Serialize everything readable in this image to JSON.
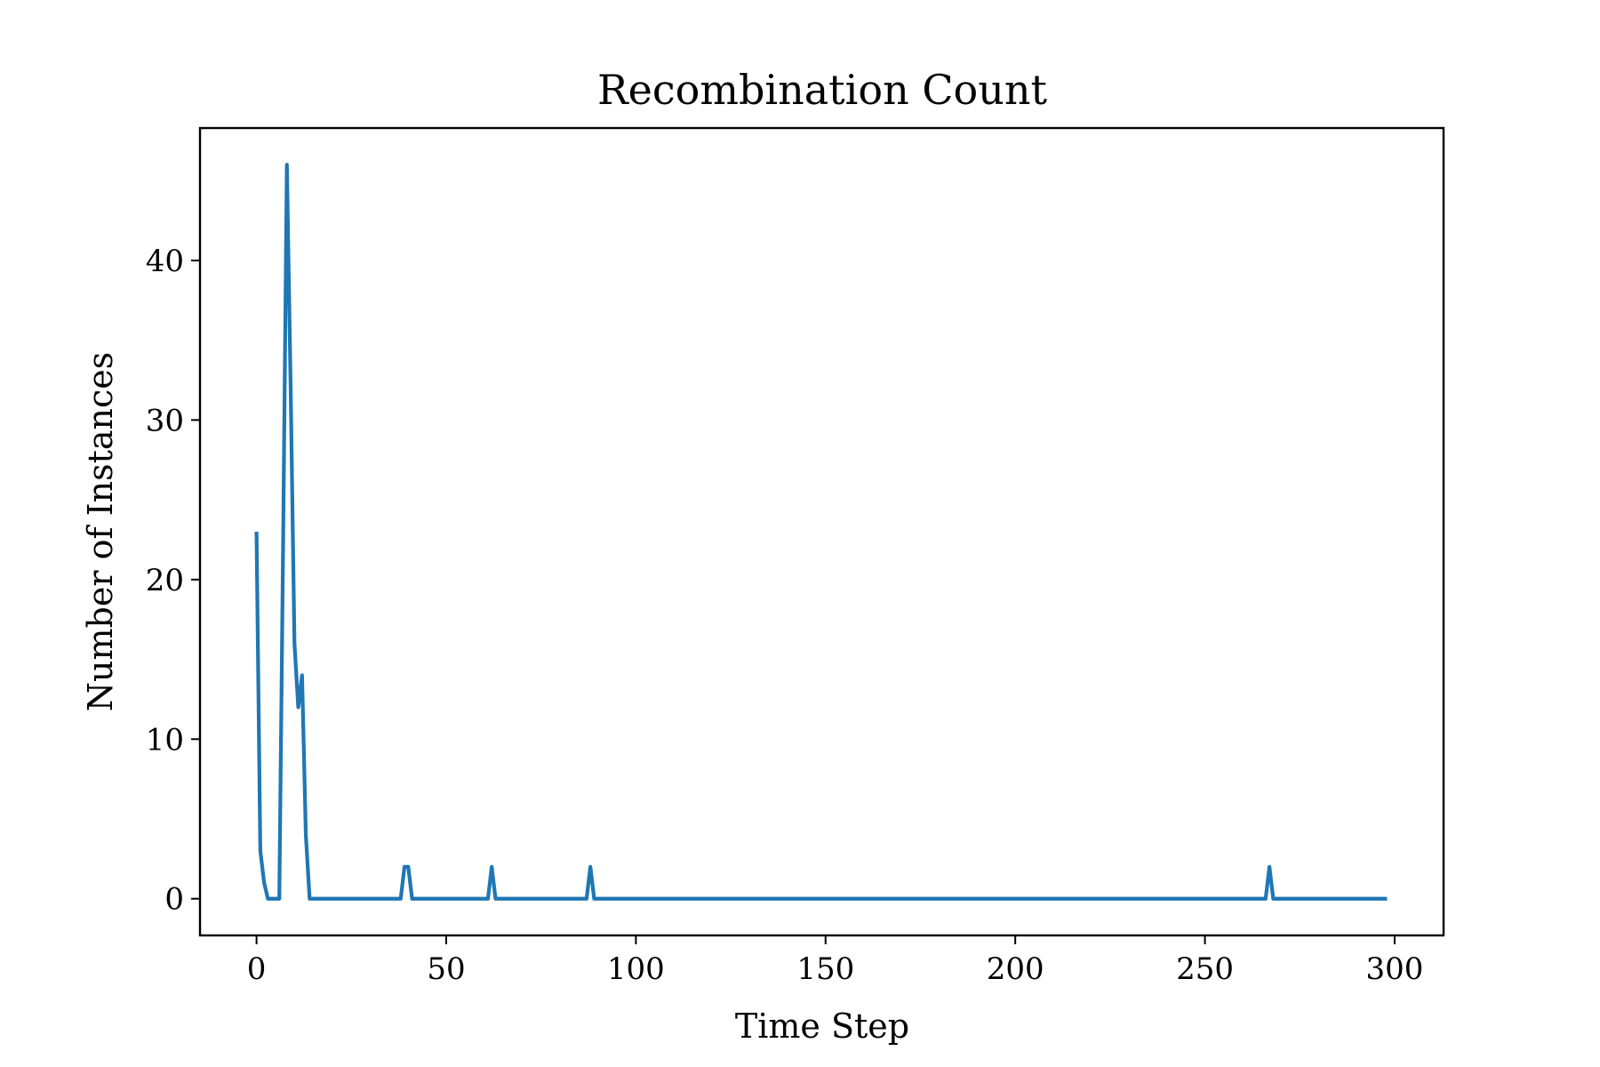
{
  "chart_data": {
    "type": "line",
    "title": "Recombination Count",
    "xlabel": "Time Step",
    "ylabel": "Number of Instances",
    "xlim": [
      -14.9,
      312.9
    ],
    "ylim": [
      -2.3,
      48.3
    ],
    "xticks": [
      0,
      50,
      100,
      150,
      200,
      250,
      300
    ],
    "yticks": [
      0,
      10,
      20,
      30,
      40
    ],
    "grid": false,
    "legend": "none",
    "series": [
      {
        "color": "#1f77b4",
        "x": [
          0,
          1,
          2,
          3,
          4,
          5,
          6,
          7,
          8,
          9,
          10,
          11,
          12,
          13,
          14,
          15,
          38,
          39,
          40,
          41,
          42,
          61,
          62,
          63,
          87,
          88,
          89,
          266,
          267,
          268,
          298
        ],
        "y": [
          23,
          3,
          1,
          0,
          0,
          0,
          0,
          22,
          46,
          32,
          16,
          12,
          14,
          4,
          0,
          0,
          0,
          2,
          2,
          0,
          0,
          0,
          2,
          0,
          0,
          2,
          0,
          0,
          2,
          0,
          0
        ]
      }
    ]
  }
}
